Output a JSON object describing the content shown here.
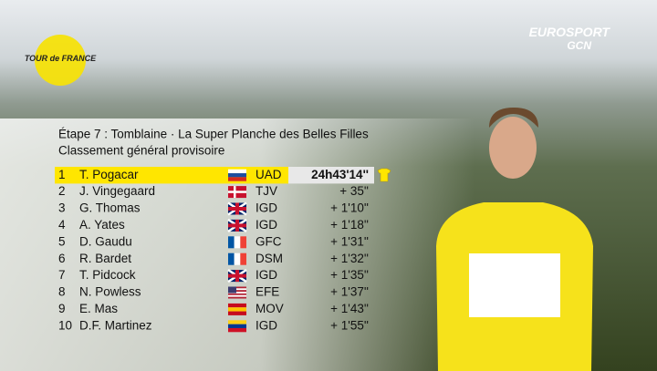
{
  "broadcaster": {
    "name": "EUROSPORT",
    "sub": "GCN"
  },
  "logo": {
    "text": "TOUR de FRANCE"
  },
  "header": {
    "stage": "Étape 7 : Tomblaine · La Super Planche des Belles Filles",
    "subtitle": "Classement général provisoire"
  },
  "table": {
    "rows": [
      [
        "1",
        "T. Pogacar",
        "UAD",
        "24h43'14''"
      ],
      [
        "2",
        "J. Vingegaard",
        "TJV",
        "+ 35''"
      ],
      [
        "3",
        "G. Thomas",
        "IGD",
        "+ 1'10''"
      ],
      [
        "4",
        "A. Yates",
        "IGD",
        "+ 1'18''"
      ],
      [
        "5",
        "D. Gaudu",
        "GFC",
        "+ 1'31''"
      ],
      [
        "6",
        "R. Bardet",
        "DSM",
        "+ 1'32''"
      ],
      [
        "7",
        "T. Pidcock",
        "IGD",
        "+ 1'35''"
      ],
      [
        "8",
        "N. Powless",
        "EFE",
        "+ 1'37''"
      ],
      [
        "9",
        "E. Mas",
        "MOV",
        "+ 1'43''"
      ],
      [
        "10",
        "D.F. Martinez",
        "IGD",
        "+ 1'55''"
      ]
    ]
  }
}
